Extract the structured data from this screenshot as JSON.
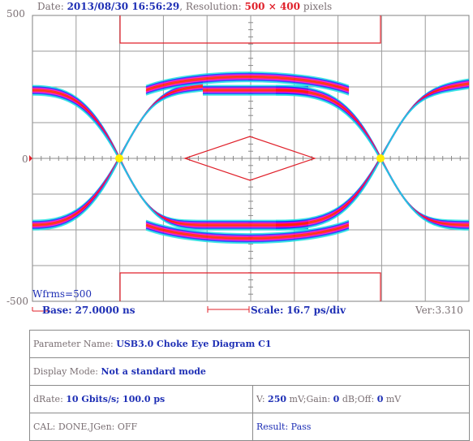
{
  "header": {
    "date_label": "Date:",
    "date_value": "2013/08/30 16:56:29",
    "resolution_label": ", Resolution:",
    "resolution_value": "500 × 400",
    "resolution_unit": " pixels"
  },
  "plot": {
    "y_max_label": "500",
    "y_zero_label": "0",
    "y_min_label": "-500",
    "wfrms": "Wfrms=500",
    "base_label": "Base:",
    "base_value": "27.0000 ns",
    "scale_label": "Scale:",
    "scale_value": "16.7 ps/div",
    "version": "Ver:3.310",
    "colors": {
      "grid": "#808080",
      "mask": "#e0202a",
      "eye_hot": "#ff2000",
      "eye_warm": "#ff00c8",
      "eye_cool": "#1030ff",
      "eye_edge": "#20e0e0",
      "crossing": "#ffee00"
    }
  },
  "params": {
    "parameter_name_label": "Parameter Name:",
    "parameter_name_value": "USB3.0 Choke Eye Diagram C1",
    "display_mode_label": "Display Mode:",
    "display_mode_value": "Not a standard mode",
    "drate_label": "dRate:",
    "drate_value": "10 Gbits/s; 100.0 ps",
    "v_label": "V:",
    "v_value": "250",
    "v_unit": "mV;Gain:",
    "gain_value": "0",
    "gain_unit": "dB;Off:",
    "off_value": "0",
    "off_unit": "mV",
    "cal_label": "CAL:",
    "cal_value": "DONE,JGen: OFF",
    "result_label": "Result:",
    "result_value": "Pass"
  }
}
